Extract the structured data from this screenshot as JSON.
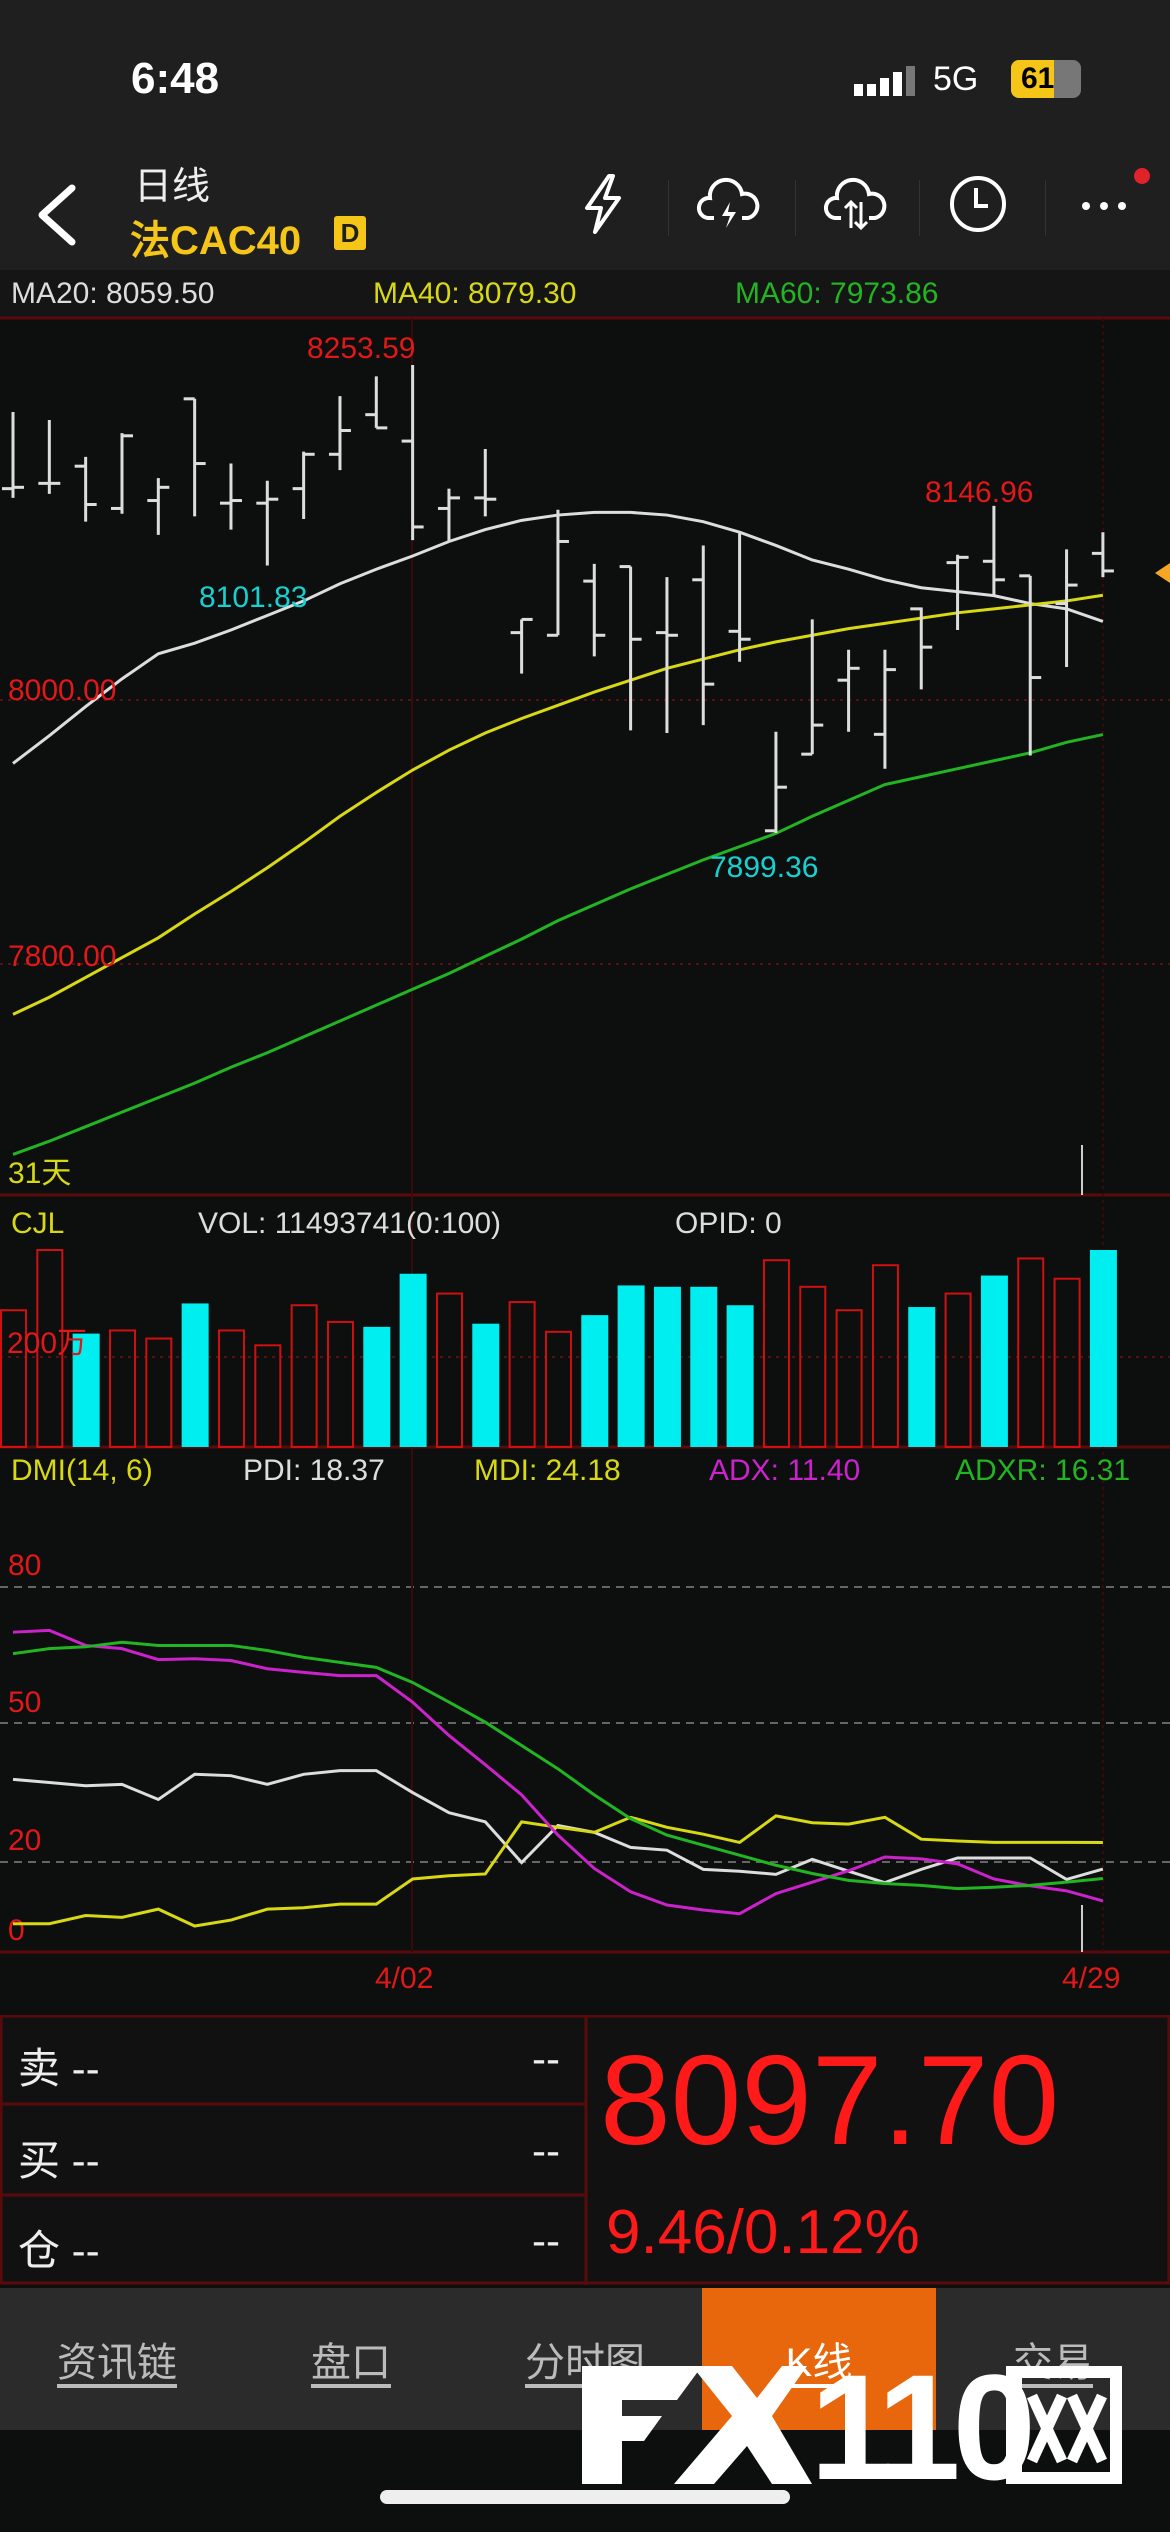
{
  "status": {
    "time": "6:48",
    "network": "5G",
    "battery": "61",
    "battery_level": 0.61
  },
  "header": {
    "period": "日线",
    "symbol": "法CAC40",
    "badge": "D",
    "icons": [
      "lightning-icon",
      "cloud-lightning-icon",
      "cloud-sync-icon",
      "clock-icon",
      "more-icon"
    ]
  },
  "ma": {
    "ma20": "MA20: 8059.50",
    "ma40": "MA40: 8079.30",
    "ma60": "MA60: 7973.86",
    "colors": {
      "ma20": "#dddddd",
      "ma40": "#d8d814",
      "ma60": "#22b422"
    }
  },
  "chart_data": [
    {
      "type": "candlestick",
      "title": "",
      "y_ticks": [
        "8000.00",
        "7800.00"
      ],
      "annotations": {
        "high": "8253.59",
        "low_left": "8101.83",
        "high_right": "8146.96",
        "low": "7899.36"
      },
      "count_label": "31天",
      "dates": {
        "mid": "4/02",
        "end": "4/29"
      },
      "open": [
        8160,
        8164,
        8177,
        8145,
        8151,
        8228,
        8149,
        8149,
        8160,
        8186,
        8216,
        8196,
        8145,
        8153,
        8051,
        8049,
        8090,
        8101,
        8051,
        8091,
        8052,
        7901,
        7959,
        8015,
        7974,
        8069,
        8104,
        8105,
        8094,
        8073,
        8111
      ],
      "high": [
        8218,
        8212,
        8184,
        8202,
        8168,
        8228,
        8179,
        8166,
        8188,
        8230,
        8245,
        8253.59,
        8160,
        8190,
        8061,
        8144,
        8103,
        8101,
        8093,
        8117,
        8126,
        7976,
        8061,
        8038,
        8038,
        8070,
        8110,
        8146.96,
        8094,
        8114,
        8127
      ],
      "low": [
        8153,
        8156,
        8135,
        8141,
        8125,
        8139,
        8129,
        8101.83,
        8137,
        8174,
        8206,
        8121,
        8120,
        8139,
        8020,
        8049,
        8033,
        7977,
        7975,
        7981,
        8029,
        7899.36,
        7959,
        7976,
        7948,
        8008,
        8053,
        8079,
        7958,
        8025,
        8093
      ],
      "close": [
        8161,
        8164,
        8148,
        8200,
        8161,
        8179,
        8151,
        8152,
        8186,
        8204,
        8206,
        8131,
        8153,
        8152,
        8061,
        8120,
        8049,
        8046,
        8049,
        8012,
        8046,
        7934,
        7981,
        8024,
        8023,
        8040,
        8108,
        8091,
        8017,
        8087,
        8097.7
      ],
      "ma20": [
        7952,
        7973,
        7995,
        8016,
        8035,
        8043,
        8053,
        8064,
        8075,
        8088,
        8099,
        8109,
        8120,
        8129,
        8136,
        8140,
        8142,
        8142,
        8140,
        8135,
        8127,
        8117,
        8106,
        8099,
        8091,
        8085,
        8082,
        8079,
        8073,
        8069,
        8059.5
      ],
      "ma40": [
        7762,
        7775,
        7790,
        7805,
        7820,
        7838,
        7855,
        7873,
        7892,
        7912,
        7930,
        7947,
        7962,
        7975,
        7986,
        7996,
        8006,
        8015,
        8024,
        8031,
        8038,
        8044,
        8049,
        8054,
        8058,
        8062,
        8066,
        8069,
        8072,
        8075,
        8079.3
      ],
      "ma60": [
        7656,
        7666,
        7677,
        7688,
        7699,
        7710,
        7722,
        7733,
        7745,
        7757,
        7769,
        7781,
        7793,
        7806,
        7819,
        7833,
        7845,
        7857,
        7868,
        7879,
        7889,
        7899,
        7912,
        7924,
        7936,
        7942,
        7948,
        7954,
        7960,
        7968,
        7973.86
      ],
      "last_price": 8097.7
    },
    {
      "type": "bar",
      "label": "CJL",
      "vol_text": "VOL: 11493741(0:100)",
      "opid_text": "OPID: 0",
      "y_tick": "200万",
      "unit": "万",
      "values": [
        304,
        456,
        252,
        259,
        241,
        319,
        259,
        226,
        315,
        278,
        267,
        385,
        341,
        274,
        322,
        256,
        293,
        359,
        356,
        356,
        315,
        415,
        356,
        304,
        404,
        311,
        341,
        381,
        419,
        374,
        1149.3741
      ],
      "up": [
        true,
        true,
        false,
        true,
        true,
        false,
        true,
        true,
        true,
        true,
        false,
        false,
        true,
        false,
        true,
        true,
        false,
        false,
        false,
        false,
        false,
        true,
        true,
        true,
        true,
        false,
        true,
        false,
        true,
        true,
        false
      ],
      "colors": {
        "up": "#d01010",
        "down": "#00eef0"
      }
    },
    {
      "type": "line",
      "label": "DMI(14, 6)",
      "y_ticks": [
        "80",
        "50",
        "20",
        "0"
      ],
      "series": [
        {
          "name": "PDI: 18.37",
          "color": "#dddddd",
          "values": [
            38,
            37.3,
            36.6,
            36.9,
            33.6,
            39.1,
            38.8,
            36.9,
            39.1,
            39.9,
            39.9,
            35.1,
            30.7,
            28.7,
            19.8,
            27.9,
            26.4,
            23.1,
            22.5,
            18.3,
            17.9,
            17.2,
            20.5,
            17.9,
            15.4,
            18.3,
            20.8,
            20.8,
            20.8,
            16.1,
            18.37
          ]
        },
        {
          "name": "MDI: 24.18",
          "color": "#d8d814",
          "values": [
            6.4,
            6.4,
            8.2,
            7.8,
            9.6,
            5.9,
            7.2,
            9.6,
            9.9,
            10.7,
            10.7,
            16.2,
            16.9,
            17.3,
            28.7,
            27.5,
            26.4,
            29.7,
            27.5,
            26,
            24.2,
            30,
            28.5,
            28.2,
            29.7,
            24.9,
            24.5,
            24.2,
            24.2,
            24.2,
            24.18
          ]
        },
        {
          "name": "ADX: 11.40",
          "color": "#cc22cc",
          "values": [
            70.2,
            70.6,
            67.3,
            66.6,
            64.2,
            64.4,
            64,
            62.2,
            61.4,
            60.7,
            60.7,
            54.9,
            47.6,
            41.2,
            34.6,
            25.8,
            18.5,
            13.4,
            10.5,
            9.4,
            8.6,
            13,
            15.5,
            18,
            21,
            20.6,
            19.5,
            16.2,
            14.7,
            13.6,
            11.4
          ]
        },
        {
          "name": "ADXR: 16.31",
          "color": "#22b422",
          "values": [
            65.5,
            66.6,
            67,
            68,
            67.3,
            67.3,
            67.3,
            66.2,
            64.7,
            63.6,
            62.5,
            59.2,
            54.9,
            50.5,
            45.4,
            40.3,
            34.6,
            29.4,
            25.8,
            23.6,
            21.4,
            19.2,
            17.4,
            15.9,
            15.2,
            14.8,
            14.1,
            14.4,
            14.8,
            15.5,
            16.31
          ]
        }
      ]
    }
  ],
  "quote": {
    "sell_label": "卖 --",
    "sell_value": "--",
    "buy_label": "买 --",
    "buy_value": "--",
    "pos_label": "仓 --",
    "pos_value": "--",
    "price": "8097.70",
    "change": "9.46/0.12%",
    "price_color": "#ff1a1a"
  },
  "tabs": [
    {
      "label": "资讯链",
      "active": false
    },
    {
      "label": "盘口",
      "active": false
    },
    {
      "label": "分时图",
      "active": false
    },
    {
      "label": "K线",
      "active": true
    },
    {
      "label": "交易",
      "active": false
    }
  ],
  "watermark": "FX110网"
}
